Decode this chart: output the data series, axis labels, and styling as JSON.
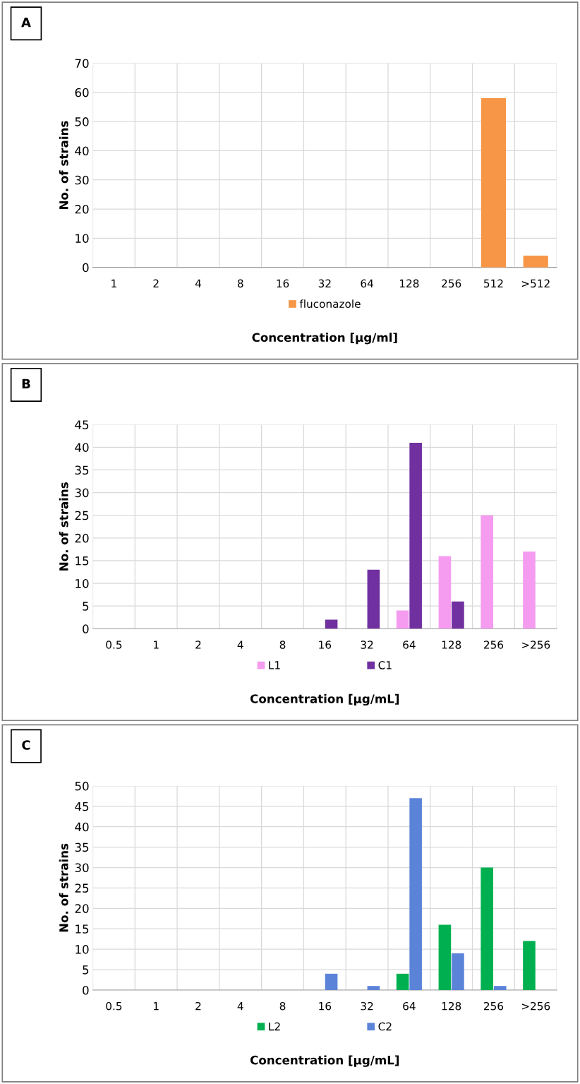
{
  "chart_data": [
    {
      "type": "bar",
      "annotations": [
        "A"
      ],
      "xlabel": "Concentration [µg/ml]",
      "ylabel": "No. of strains",
      "categories": [
        "1",
        "2",
        "4",
        "8",
        "16",
        "32",
        "64",
        "128",
        "256",
        "512",
        ">512"
      ],
      "series": [
        {
          "name": "fluconazole",
          "color": "#f79646",
          "values": [
            0,
            0,
            0,
            0,
            0,
            0,
            0,
            0,
            0,
            58,
            4
          ]
        }
      ],
      "ylim": [
        0,
        70
      ],
      "yticks": [
        0,
        10,
        20,
        30,
        40,
        50,
        60,
        70
      ],
      "grid": true,
      "legend": "bottom"
    },
    {
      "type": "bar",
      "annotations": [
        "B"
      ],
      "xlabel": "Concentration [µg/mL]",
      "ylabel": "No. of strains",
      "categories": [
        "0.5",
        "1",
        "2",
        "4",
        "8",
        "16",
        "32",
        "64",
        "128",
        "256",
        ">256"
      ],
      "series": [
        {
          "name": "L1",
          "color": "#f59cf0",
          "values": [
            0,
            0,
            0,
            0,
            0,
            0,
            0,
            4,
            16,
            25,
            17
          ]
        },
        {
          "name": "C1",
          "color": "#7030a0",
          "values": [
            0,
            0,
            0,
            0,
            0,
            2,
            13,
            41,
            6,
            0,
            0
          ]
        }
      ],
      "ylim": [
        0,
        45
      ],
      "yticks": [
        0,
        5,
        10,
        15,
        20,
        25,
        30,
        35,
        40,
        45
      ],
      "grid": true,
      "legend": "bottom"
    },
    {
      "type": "bar",
      "annotations": [
        "C"
      ],
      "xlabel": "Concentration [µg/mL]",
      "ylabel": "No. of strains",
      "categories": [
        "0.5",
        "1",
        "2",
        "4",
        "8",
        "16",
        "32",
        "64",
        "128",
        "256",
        ">256"
      ],
      "series": [
        {
          "name": "L2",
          "color": "#00b050",
          "values": [
            0,
            0,
            0,
            0,
            0,
            0,
            0,
            4,
            16,
            30,
            12
          ]
        },
        {
          "name": "C2",
          "color": "#5b84d8",
          "values": [
            0,
            0,
            0,
            0,
            0,
            4,
            1,
            47,
            9,
            1,
            0
          ]
        }
      ],
      "ylim": [
        0,
        50
      ],
      "yticks": [
        0,
        5,
        10,
        15,
        20,
        25,
        30,
        35,
        40,
        45,
        50
      ],
      "grid": true,
      "legend": "bottom"
    }
  ]
}
